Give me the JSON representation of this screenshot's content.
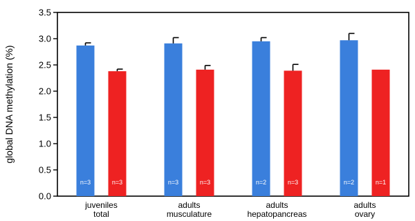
{
  "chart_data": {
    "type": "bar",
    "title": "",
    "xlabel": "",
    "ylabel": "global DNA methylation (%)",
    "ylim": [
      0,
      3.5
    ],
    "yticks": [
      "0.0",
      "0.5",
      "1.0",
      "1.5",
      "2.0",
      "2.5",
      "3.0",
      "3.5"
    ],
    "grid": false,
    "categories": [
      [
        "juveniles",
        "total"
      ],
      [
        "adults",
        "musculature"
      ],
      [
        "adults",
        "hepatopancreas"
      ],
      [
        "adults",
        "ovary"
      ]
    ],
    "series": [
      {
        "color": "#3a7fdc",
        "values": [
          2.87,
          2.91,
          2.95,
          2.97
        ],
        "errors": [
          0.05,
          0.11,
          0.07,
          0.13
        ],
        "n_labels": [
          "n=3",
          "n=3",
          "n=2",
          "n=2"
        ]
      },
      {
        "color": "#ee2222",
        "values": [
          2.38,
          2.41,
          2.39,
          2.41
        ],
        "errors": [
          0.04,
          0.08,
          0.12,
          0
        ],
        "n_labels": [
          "n=3",
          "n=3",
          "n=3",
          "n=1"
        ]
      }
    ]
  }
}
